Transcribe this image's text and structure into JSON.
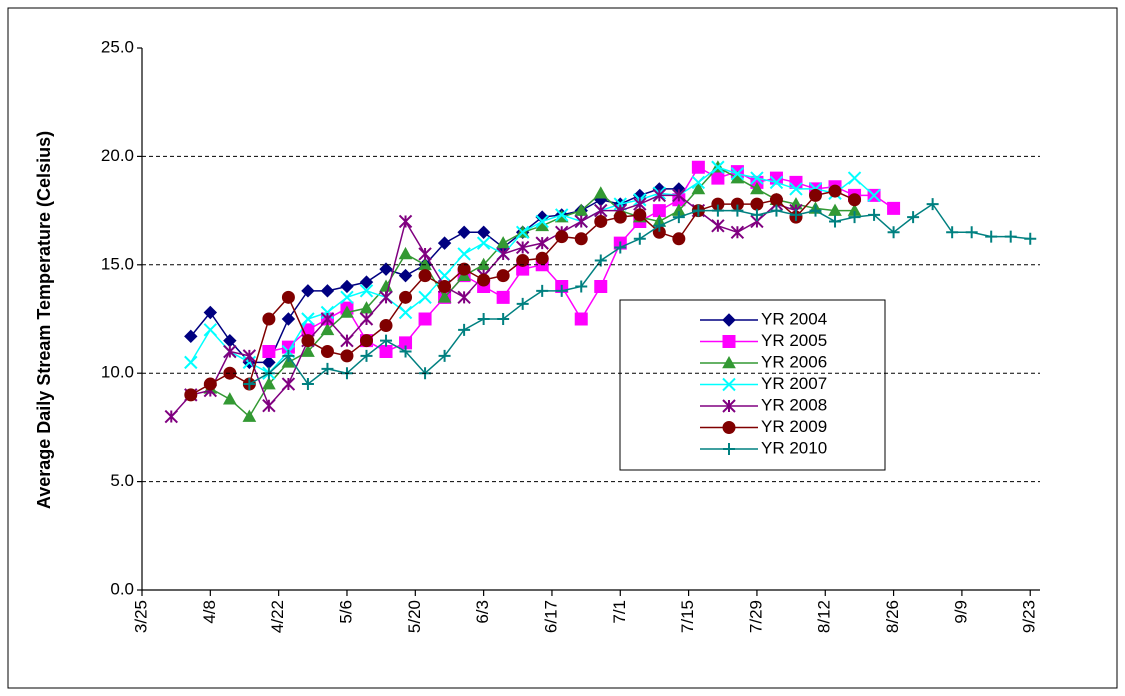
{
  "chart_data": {
    "type": "line",
    "y_label": "Average Daily Stream Temperature (Celsius)",
    "x": [
      "3/31",
      "4/4",
      "4/8",
      "4/12",
      "4/16",
      "4/20",
      "4/24",
      "4/28",
      "5/2",
      "5/6",
      "5/10",
      "5/14",
      "5/18",
      "5/22",
      "5/26",
      "5/30",
      "6/3",
      "6/7",
      "6/11",
      "6/15",
      "6/19",
      "6/23",
      "6/27",
      "7/1",
      "7/5",
      "7/9",
      "7/13",
      "7/17",
      "7/21",
      "7/25",
      "7/29",
      "8/2",
      "8/6",
      "8/10",
      "8/14",
      "8/18",
      "8/22",
      "8/26",
      "8/30",
      "9/3",
      "9/7",
      "9/11",
      "9/15",
      "9/19",
      "9/23"
    ],
    "xlim": [
      "3/25",
      "9/25"
    ],
    "xticks": [
      "3/25",
      "4/8",
      "4/22",
      "5/6",
      "5/20",
      "6/3",
      "6/17",
      "7/1",
      "7/15",
      "7/29",
      "8/12",
      "8/26",
      "9/9",
      "9/23"
    ],
    "ylim": [
      0,
      25
    ],
    "yticks": [
      {
        "value": 0,
        "label": "0.0"
      },
      {
        "value": 5,
        "label": "5.0"
      },
      {
        "value": 10,
        "label": "10.0"
      },
      {
        "value": 15,
        "label": "15.0"
      },
      {
        "value": 20,
        "label": "20.0"
      },
      {
        "value": 25,
        "label": "25.0"
      }
    ],
    "grid": true,
    "series": [
      {
        "name": "YR 2004",
        "color": "#000080",
        "marker": "diamond",
        "values": [
          null,
          11.7,
          12.8,
          11.5,
          10.5,
          10.5,
          12.5,
          13.8,
          13.8,
          14,
          14.2,
          14.8,
          14.5,
          15,
          16,
          16.5,
          16.5,
          15.8,
          16.5,
          17.2,
          17.3,
          17.5,
          18,
          17.8,
          18.2,
          18.5,
          18.5,
          null,
          null,
          null,
          null,
          null,
          null,
          null,
          null,
          null,
          null,
          null,
          null,
          null,
          null,
          null,
          null,
          null,
          null
        ]
      },
      {
        "name": "YR 2005",
        "color": "#ff00ff",
        "marker": "square",
        "values": [
          null,
          null,
          null,
          null,
          null,
          11,
          11.2,
          12,
          12.5,
          13,
          11.5,
          11,
          11.4,
          12.5,
          13.5,
          14.5,
          14,
          13.5,
          14.8,
          15,
          14,
          12.5,
          14,
          16,
          17,
          17.5,
          18,
          19.5,
          19,
          19.3,
          18.8,
          19,
          18.8,
          18.5,
          18.6,
          18.2,
          18.2,
          17.6,
          null,
          null,
          null,
          null,
          null,
          null,
          null
        ]
      },
      {
        "name": "YR 2006",
        "color": "#339933",
        "marker": "triangle",
        "values": [
          null,
          null,
          9.3,
          8.8,
          8.0,
          9.5,
          10.5,
          11,
          12,
          12.8,
          13,
          14,
          15.5,
          15,
          13.5,
          14.5,
          15,
          16,
          16.5,
          16.8,
          17.2,
          17.5,
          18.3,
          17.5,
          17.2,
          17,
          17.5,
          18.5,
          19.5,
          19,
          18.5,
          18,
          17.8,
          17.6,
          17.5,
          17.5,
          null,
          null,
          null,
          null,
          null,
          null,
          null,
          null,
          null
        ]
      },
      {
        "name": "YR 2007",
        "color": "#00ffff",
        "marker": "x",
        "values": [
          null,
          10.5,
          12,
          11,
          10.5,
          10,
          11,
          12.5,
          12.8,
          13.5,
          13.8,
          13.5,
          12.8,
          13.5,
          14.5,
          15.5,
          16,
          15.5,
          16.5,
          17,
          17.3,
          17,
          17.5,
          17.8,
          18,
          18.3,
          18.2,
          18.8,
          19.5,
          19.2,
          19,
          18.8,
          18.5,
          18.5,
          18.3,
          19,
          18.2,
          null,
          null,
          null,
          null,
          null,
          null,
          null,
          null
        ]
      },
      {
        "name": "YR 2008",
        "color": "#800080",
        "marker": "asterisk",
        "values": [
          8.0,
          9.0,
          9.2,
          11,
          10.8,
          8.5,
          9.5,
          11.5,
          12.5,
          11.5,
          12.5,
          13.5,
          17.0,
          15.5,
          14,
          13.5,
          14.5,
          15.5,
          15.8,
          16,
          16.5,
          17,
          17.5,
          17.5,
          17.8,
          18.2,
          18.2,
          17.5,
          16.8,
          16.5,
          17,
          17.8,
          17.5,
          null,
          null,
          null,
          null,
          null,
          null,
          null,
          null,
          null,
          null,
          null,
          null
        ]
      },
      {
        "name": "YR 2009",
        "color": "#800000",
        "marker": "circle",
        "values": [
          null,
          9.0,
          9.5,
          10,
          9.5,
          12.5,
          13.5,
          11.5,
          11,
          10.8,
          11.5,
          12.2,
          13.5,
          14.5,
          14,
          14.8,
          14.3,
          14.5,
          15.2,
          15.3,
          16.3,
          16.2,
          17,
          17.2,
          17.3,
          16.5,
          16.2,
          17.5,
          17.8,
          17.8,
          17.8,
          18,
          17.2,
          18.2,
          18.4,
          18,
          null,
          null,
          null,
          null,
          null,
          null,
          null,
          null,
          null
        ]
      },
      {
        "name": "YR 2010",
        "color": "#008080",
        "marker": "plus",
        "values": [
          null,
          null,
          null,
          null,
          9.5,
          10,
          10.8,
          9.5,
          10.2,
          10.0,
          10.8,
          11.5,
          11,
          10.0,
          10.8,
          12,
          12.5,
          12.5,
          13.2,
          13.8,
          13.8,
          14.0,
          15.2,
          15.8,
          16.2,
          16.8,
          17.2,
          17.5,
          17.5,
          17.5,
          17.3,
          17.5,
          17.3,
          17.5,
          17.0,
          17.2,
          17.3,
          16.5,
          17.2,
          17.8,
          16.5,
          16.5,
          16.3,
          16.3,
          16.2
        ]
      }
    ]
  }
}
